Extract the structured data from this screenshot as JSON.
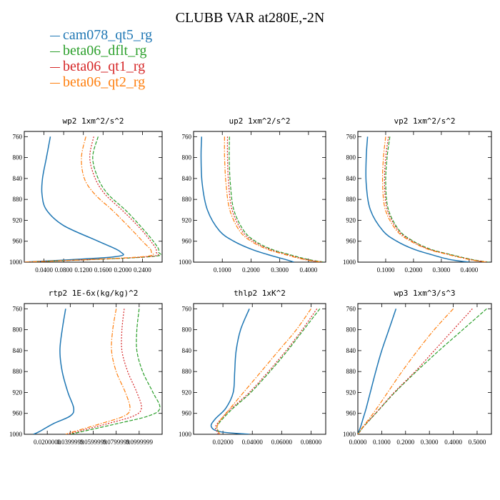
{
  "title": "CLUBB VAR at280E,-2N",
  "legend": [
    {
      "name": "cam078_qt5_rg",
      "color": "#1f77b4"
    },
    {
      "name": "beta06_dflt_rg",
      "color": "#2ca02c"
    },
    {
      "name": "beta06_qt1_rg",
      "color": "#d62728"
    },
    {
      "name": "beta06_qt2_rg",
      "color": "#ff7f0e"
    }
  ],
  "chart_data": [
    {
      "type": "line",
      "title": "wp2  1xm^2/s^2",
      "xlim": [
        0.0,
        0.28
      ],
      "ylim": [
        1000,
        750
      ],
      "xticks": [
        "0.0400",
        "0.0800",
        "0.1200",
        "0.1600",
        "0.2000",
        "0.2400"
      ],
      "xtick_values": [
        0.04,
        0.08,
        0.12,
        0.16,
        0.2,
        0.24
      ],
      "yticks": [
        "760",
        "800",
        "840",
        "880",
        "920",
        "960",
        "1000"
      ],
      "ytick_values": [
        760,
        800,
        840,
        880,
        920,
        960,
        1000
      ],
      "y": [
        760,
        800,
        840,
        870,
        900,
        930,
        960,
        980,
        990,
        1000
      ],
      "series": [
        {
          "name": "cam078_qt5_rg",
          "x": [
            0.053,
            0.045,
            0.037,
            0.036,
            0.045,
            0.08,
            0.15,
            0.195,
            0.18,
            0.0
          ]
        },
        {
          "name": "beta06_dflt_rg",
          "x": [
            0.15,
            0.139,
            0.15,
            0.17,
            0.205,
            0.235,
            0.262,
            0.273,
            0.25,
            0.0
          ]
        },
        {
          "name": "beta06_qt1_rg",
          "x": [
            0.141,
            0.133,
            0.144,
            0.164,
            0.198,
            0.23,
            0.257,
            0.268,
            0.245,
            0.0
          ]
        },
        {
          "name": "beta06_qt2_rg",
          "x": [
            0.125,
            0.116,
            0.122,
            0.143,
            0.178,
            0.21,
            0.24,
            0.258,
            0.235,
            0.0
          ]
        }
      ]
    },
    {
      "type": "line",
      "title": "up2  1xm^2/s^2",
      "xlim": [
        0.0,
        0.46
      ],
      "ylim": [
        1000,
        750
      ],
      "xticks": [
        "0.1000",
        "0.2000",
        "0.3000",
        "0.4000"
      ],
      "xtick_values": [
        0.1,
        0.2,
        0.3,
        0.4
      ],
      "yticks": [
        "760",
        "800",
        "840",
        "880",
        "920",
        "960",
        "1000"
      ],
      "ytick_values": [
        760,
        800,
        840,
        880,
        920,
        960,
        1000
      ],
      "y": [
        760,
        800,
        850,
        900,
        940,
        960,
        975,
        985,
        995,
        1000
      ],
      "series": [
        {
          "name": "cam078_qt5_rg",
          "x": [
            0.028,
            0.026,
            0.03,
            0.048,
            0.09,
            0.14,
            0.2,
            0.255,
            0.32,
            0.35
          ]
        },
        {
          "name": "beta06_dflt_rg",
          "x": [
            0.125,
            0.124,
            0.128,
            0.14,
            0.175,
            0.215,
            0.27,
            0.33,
            0.4,
            0.455
          ]
        },
        {
          "name": "beta06_qt1_rg",
          "x": [
            0.118,
            0.118,
            0.122,
            0.134,
            0.168,
            0.208,
            0.262,
            0.322,
            0.392,
            0.45
          ]
        },
        {
          "name": "beta06_qt2_rg",
          "x": [
            0.108,
            0.108,
            0.113,
            0.126,
            0.16,
            0.2,
            0.255,
            0.315,
            0.385,
            0.44
          ]
        }
      ]
    },
    {
      "type": "line",
      "title": "vp2  1xm^2/s^2",
      "xlim": [
        0.0,
        0.48
      ],
      "ylim": [
        1000,
        750
      ],
      "xticks": [
        "0.1000",
        "0.2000",
        "0.3000",
        "0.4000"
      ],
      "xtick_values": [
        0.1,
        0.2,
        0.3,
        0.4
      ],
      "yticks": [
        "760",
        "800",
        "840",
        "880",
        "920",
        "960",
        "1000"
      ],
      "ytick_values": [
        760,
        800,
        840,
        880,
        920,
        960,
        1000
      ],
      "y": [
        760,
        800,
        850,
        900,
        940,
        960,
        975,
        985,
        995,
        1000
      ],
      "series": [
        {
          "name": "cam078_qt5_rg",
          "x": [
            0.035,
            0.03,
            0.03,
            0.045,
            0.09,
            0.14,
            0.2,
            0.26,
            0.33,
            0.4
          ]
        },
        {
          "name": "beta06_dflt_rg",
          "x": [
            0.115,
            0.105,
            0.1,
            0.11,
            0.15,
            0.2,
            0.26,
            0.33,
            0.41,
            0.47
          ]
        },
        {
          "name": "beta06_qt1_rg",
          "x": [
            0.11,
            0.1,
            0.096,
            0.106,
            0.146,
            0.196,
            0.255,
            0.325,
            0.405,
            0.465
          ]
        },
        {
          "name": "beta06_qt2_rg",
          "x": [
            0.1,
            0.092,
            0.089,
            0.099,
            0.14,
            0.19,
            0.25,
            0.32,
            0.4,
            0.46
          ]
        }
      ]
    },
    {
      "type": "line",
      "title": "rtp2  1E-6x(kg/kg)^2",
      "xlim": [
        0.0,
        0.12
      ],
      "ylim": [
        1000,
        750
      ],
      "xticks": [
        "0.0200000",
        "0.0399999",
        "0.0599999",
        "0.0799999",
        "0.0999999"
      ],
      "xtick_values": [
        0.02,
        0.04,
        0.06,
        0.08,
        0.1
      ],
      "yticks": [
        "760",
        "800",
        "840",
        "880",
        "920",
        "960",
        "1000"
      ],
      "ytick_values": [
        760,
        800,
        840,
        880,
        920,
        960,
        1000
      ],
      "y": [
        760,
        800,
        840,
        880,
        920,
        950,
        965,
        980,
        995,
        1000
      ],
      "series": [
        {
          "name": "cam078_qt5_rg",
          "x": [
            0.036,
            0.033,
            0.031,
            0.033,
            0.038,
            0.043,
            0.04,
            0.025,
            0.013,
            0.008
          ]
        },
        {
          "name": "beta06_dflt_rg",
          "x": [
            0.1,
            0.098,
            0.098,
            0.103,
            0.112,
            0.118,
            0.108,
            0.08,
            0.05,
            0.04
          ]
        },
        {
          "name": "beta06_qt1_rg",
          "x": [
            0.087,
            0.085,
            0.085,
            0.09,
            0.098,
            0.102,
            0.095,
            0.072,
            0.046,
            0.038
          ]
        },
        {
          "name": "beta06_qt2_rg",
          "x": [
            0.08,
            0.077,
            0.076,
            0.08,
            0.088,
            0.092,
            0.087,
            0.066,
            0.043,
            0.036
          ]
        }
      ]
    },
    {
      "type": "line",
      "title": "thlp2  1xK^2",
      "xlim": [
        0.0,
        0.09
      ],
      "ylim": [
        1000,
        750
      ],
      "xticks": [
        "0.02000",
        "0.04000",
        "0.06000",
        "0.08000"
      ],
      "xtick_values": [
        0.02,
        0.04,
        0.06,
        0.08
      ],
      "yticks": [
        "760",
        "800",
        "840",
        "880",
        "920",
        "960",
        "1000"
      ],
      "ytick_values": [
        760,
        800,
        840,
        880,
        920,
        960,
        1000
      ],
      "y": [
        760,
        800,
        840,
        880,
        920,
        950,
        970,
        985,
        995,
        1000
      ],
      "series": [
        {
          "name": "cam078_qt5_rg",
          "x": [
            0.038,
            0.032,
            0.029,
            0.028,
            0.027,
            0.022,
            0.015,
            0.012,
            0.018,
            0.038
          ]
        },
        {
          "name": "beta06_dflt_rg",
          "x": [
            0.086,
            0.075,
            0.064,
            0.052,
            0.039,
            0.027,
            0.02,
            0.016,
            0.017,
            0.018
          ]
        },
        {
          "name": "beta06_qt1_rg",
          "x": [
            0.084,
            0.074,
            0.063,
            0.051,
            0.038,
            0.026,
            0.019,
            0.015,
            0.016,
            0.017
          ]
        },
        {
          "name": "beta06_qt2_rg",
          "x": [
            0.08,
            0.07,
            0.058,
            0.046,
            0.034,
            0.025,
            0.019,
            0.016,
            0.017,
            0.018
          ]
        }
      ]
    },
    {
      "type": "line",
      "title": "wp3  1xm^3/s^3",
      "xlim": [
        0.0,
        0.56
      ],
      "ylim": [
        1000,
        750
      ],
      "xticks": [
        "0.0000",
        "0.1000",
        "0.2000",
        "0.3000",
        "0.4000",
        "0.5000"
      ],
      "xtick_values": [
        0.0,
        0.1,
        0.2,
        0.3,
        0.4,
        0.5
      ],
      "yticks": [
        "760",
        "800",
        "840",
        "880",
        "920",
        "960",
        "1000"
      ],
      "ytick_values": [
        760,
        800,
        840,
        880,
        920,
        960,
        1000
      ],
      "y": [
        760,
        800,
        840,
        880,
        920,
        950,
        970,
        985,
        995,
        1000
      ],
      "series": [
        {
          "name": "cam078_qt5_rg",
          "x": [
            0.16,
            0.13,
            0.1,
            0.075,
            0.052,
            0.035,
            0.022,
            0.012,
            0.004,
            0.0
          ]
        },
        {
          "name": "beta06_dflt_rg",
          "x": [
            0.54,
            0.44,
            0.34,
            0.245,
            0.155,
            0.095,
            0.055,
            0.025,
            0.008,
            0.0
          ]
        },
        {
          "name": "beta06_qt1_rg",
          "x": [
            0.48,
            0.4,
            0.32,
            0.24,
            0.152,
            0.093,
            0.054,
            0.024,
            0.008,
            0.0
          ]
        },
        {
          "name": "beta06_qt2_rg",
          "x": [
            0.4,
            0.32,
            0.25,
            0.185,
            0.125,
            0.08,
            0.048,
            0.022,
            0.007,
            0.0
          ]
        }
      ]
    }
  ]
}
